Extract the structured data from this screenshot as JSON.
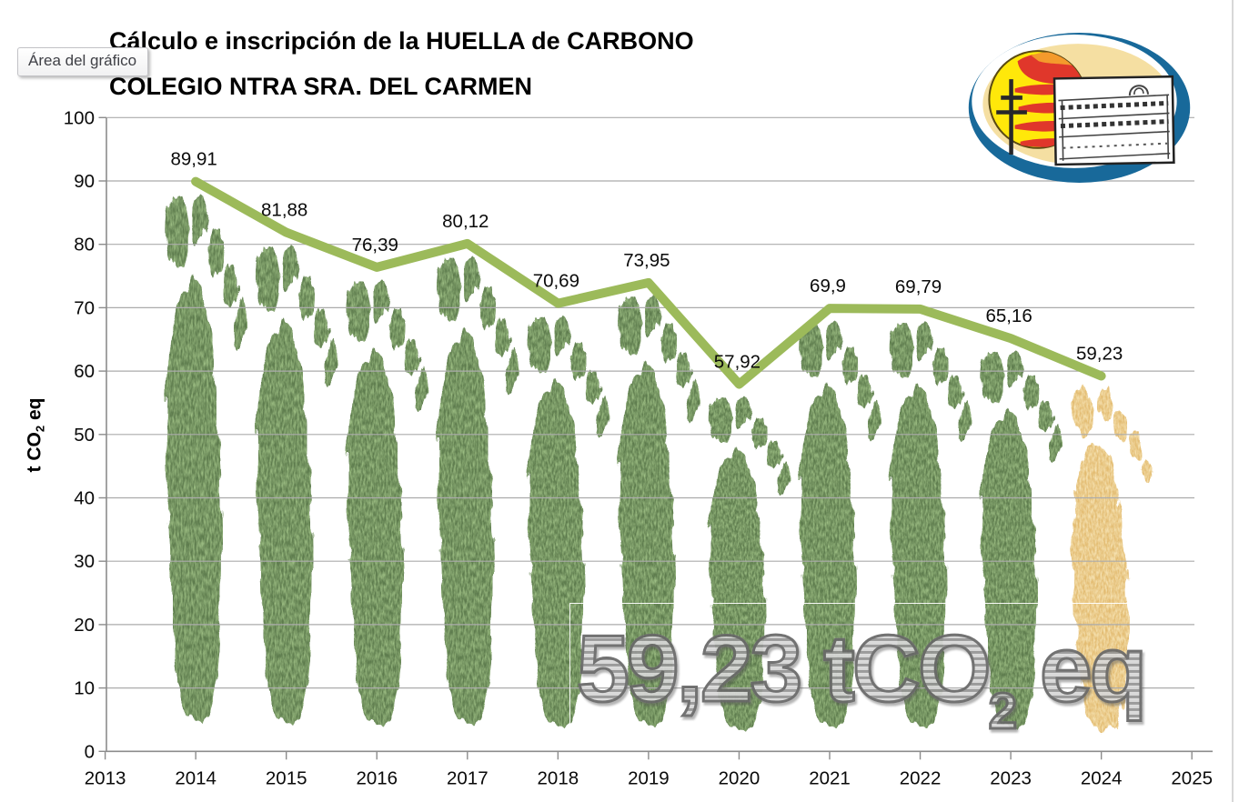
{
  "tooltip": {
    "label": "Área del gráfico"
  },
  "title": {
    "line1": "Cálculo e inscripción de la HUELLA de CARBONO",
    "line2": "COLEGIO NTRA SRA. DEL CARMEN"
  },
  "y_axis_title": {
    "prefix": "t CO",
    "sub": "2",
    "suffix": " eq"
  },
  "watermark": {
    "prefix": "59,23 tCO",
    "sub": "2",
    "suffix": " eq"
  },
  "colors": {
    "series_line": "#9cba5a",
    "gridline": "#ababab",
    "axis": "#8c8c8c",
    "footprint_green": "#5e7c4e",
    "footprint_green_speckle": "#9ebf86",
    "footprint_tan": "#e3bc72",
    "footprint_tan_speckle": "#f6e4b4",
    "label_text": "#0a0a0a",
    "watermark_stroke": "#686868",
    "logo_blue": "#18699a",
    "logo_cream": "#f5dfa2",
    "logo_yellow": "#ffe80a",
    "logo_flame_red": "#e0372b",
    "logo_flame_orange": "#f49a2c"
  },
  "chart_data": {
    "type": "line",
    "title": "Cálculo e inscripción de la HUELLA de CARBONO COLEGIO NTRA SRA. DEL CARMEN",
    "ylabel": "t CO2 eq",
    "xlabel": "",
    "grid": true,
    "legend": false,
    "xlim": [
      2013,
      2025
    ],
    "ylim": [
      0,
      100
    ],
    "x": [
      2014,
      2015,
      2016,
      2017,
      2018,
      2019,
      2020,
      2021,
      2022,
      2023,
      2024
    ],
    "values": [
      89.91,
      81.88,
      76.39,
      80.12,
      70.69,
      73.95,
      57.92,
      69.9,
      69.79,
      65.16,
      59.23
    ],
    "point_labels": [
      "89,91",
      "81,88",
      "76,39",
      "80,12",
      "70,69",
      "73,95",
      "57,92",
      "69,9",
      "69,79",
      "65,16",
      "59,23"
    ],
    "latest_index": 10,
    "y_ticks": [
      "0",
      "10",
      "20",
      "30",
      "40",
      "50",
      "60",
      "70",
      "80",
      "90",
      "100"
    ],
    "x_ticks": [
      "2013",
      "2014",
      "2015",
      "2016",
      "2017",
      "2018",
      "2019",
      "2020",
      "2021",
      "2022",
      "2023",
      "2024",
      "2025"
    ]
  }
}
